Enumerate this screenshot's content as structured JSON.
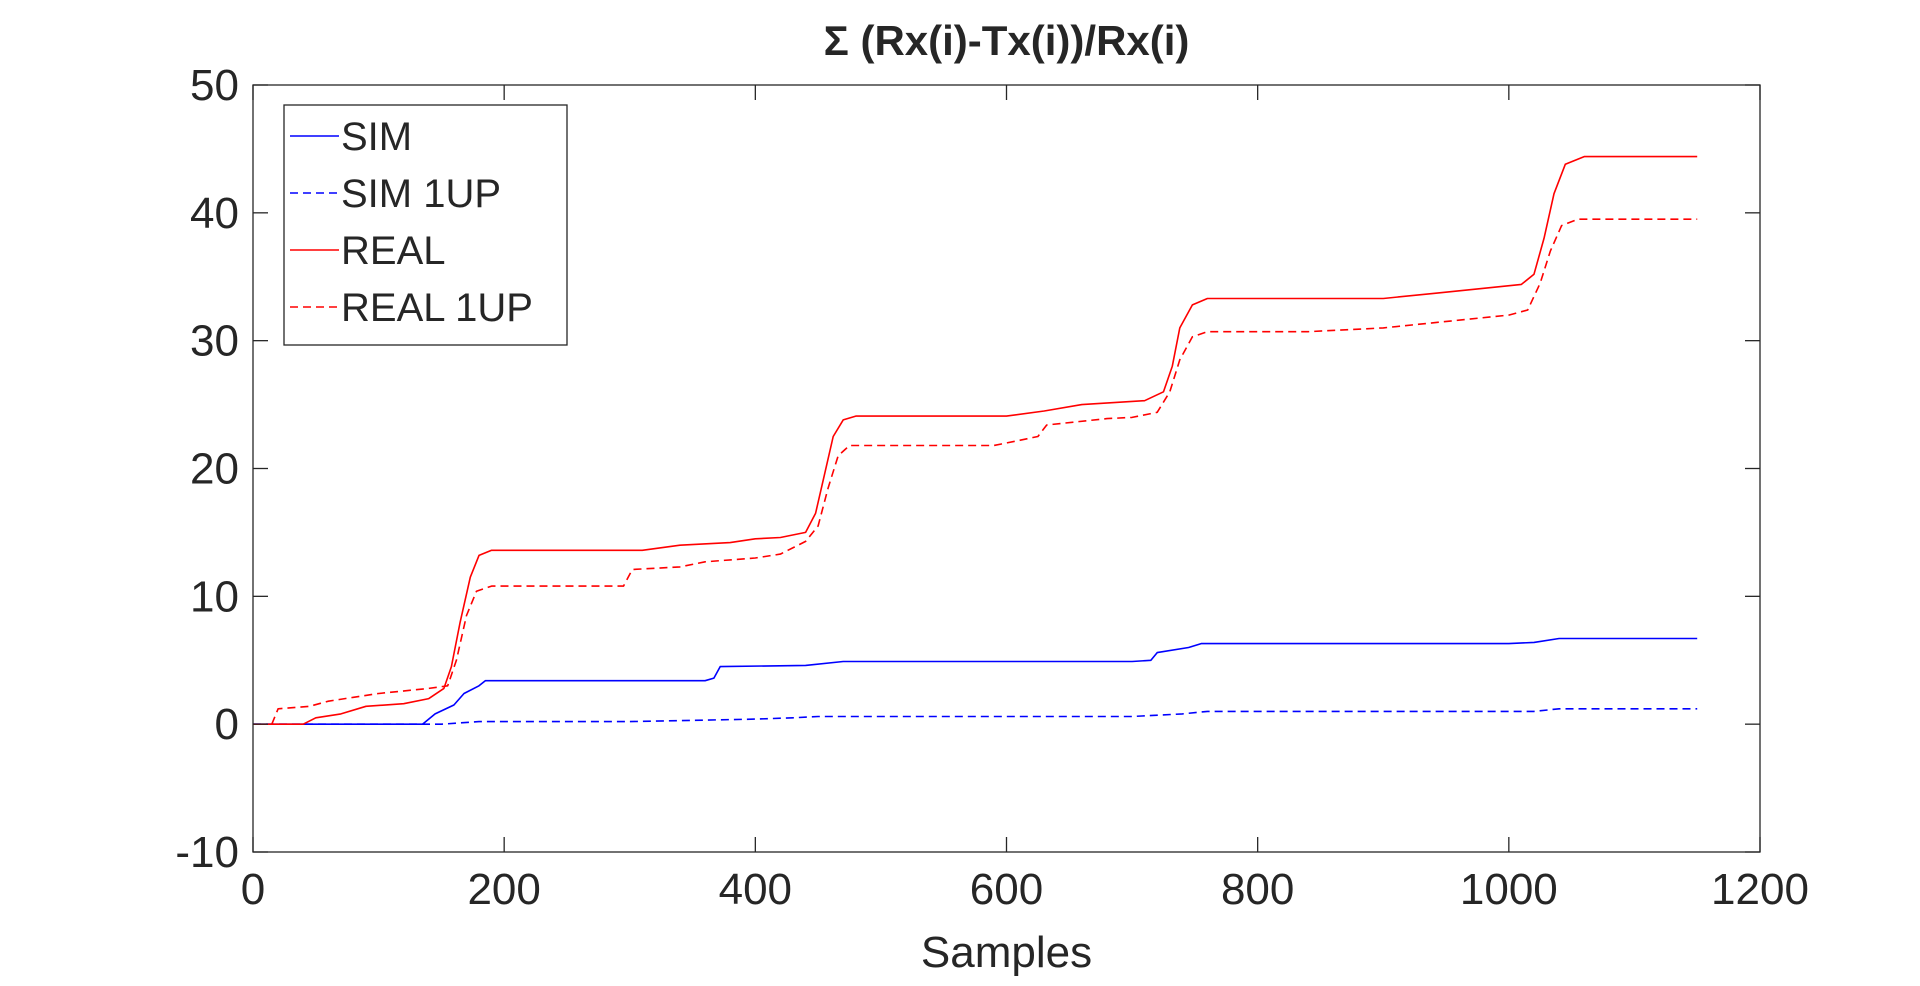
{
  "chart_data": {
    "type": "line",
    "title": "Σ (Rx(i)-Tx(i))/Rx(i)",
    "xlabel": "Samples",
    "ylabel": "",
    "xlim": [
      0,
      1200
    ],
    "ylim": [
      -10,
      50
    ],
    "xticks": [
      0,
      200,
      400,
      600,
      800,
      1000,
      1200
    ],
    "yticks": [
      -10,
      0,
      10,
      20,
      30,
      40,
      50
    ],
    "xtick_labels": [
      "0",
      "200",
      "400",
      "600",
      "800",
      "1000",
      "1200"
    ],
    "ytick_labels": [
      "-10",
      "0",
      "10",
      "20",
      "30",
      "40",
      "50"
    ],
    "grid": false,
    "legend_position": "top-left",
    "series": [
      {
        "name": "SIM",
        "color": "#0000ff",
        "style": "solid",
        "points": [
          [
            0,
            0
          ],
          [
            135,
            0
          ],
          [
            145,
            0.8
          ],
          [
            160,
            1.5
          ],
          [
            168,
            2.4
          ],
          [
            180,
            3.0
          ],
          [
            185,
            3.4
          ],
          [
            360,
            3.4
          ],
          [
            367,
            3.6
          ],
          [
            372,
            4.5
          ],
          [
            440,
            4.6
          ],
          [
            470,
            4.9
          ],
          [
            700,
            4.9
          ],
          [
            715,
            5.0
          ],
          [
            720,
            5.6
          ],
          [
            745,
            6.0
          ],
          [
            755,
            6.3
          ],
          [
            1000,
            6.3
          ],
          [
            1020,
            6.4
          ],
          [
            1040,
            6.7
          ],
          [
            1150,
            6.7
          ]
        ]
      },
      {
        "name": "SIM 1UP",
        "color": "#0000ff",
        "style": "dashed",
        "points": [
          [
            0,
            0
          ],
          [
            150,
            0
          ],
          [
            180,
            0.2
          ],
          [
            300,
            0.2
          ],
          [
            400,
            0.4
          ],
          [
            430,
            0.5
          ],
          [
            450,
            0.6
          ],
          [
            700,
            0.6
          ],
          [
            740,
            0.8
          ],
          [
            760,
            1.0
          ],
          [
            1020,
            1.0
          ],
          [
            1040,
            1.2
          ],
          [
            1150,
            1.2
          ]
        ]
      },
      {
        "name": "REAL",
        "color": "#ff0000",
        "style": "solid",
        "points": [
          [
            0,
            0
          ],
          [
            40,
            0
          ],
          [
            50,
            0.5
          ],
          [
            70,
            0.8
          ],
          [
            90,
            1.4
          ],
          [
            120,
            1.6
          ],
          [
            140,
            2.0
          ],
          [
            152,
            2.8
          ],
          [
            158,
            4.5
          ],
          [
            165,
            8.0
          ],
          [
            173,
            11.5
          ],
          [
            180,
            13.2
          ],
          [
            190,
            13.6
          ],
          [
            310,
            13.6
          ],
          [
            340,
            14.0
          ],
          [
            380,
            14.2
          ],
          [
            400,
            14.5
          ],
          [
            420,
            14.6
          ],
          [
            440,
            15.0
          ],
          [
            448,
            16.5
          ],
          [
            455,
            19.5
          ],
          [
            462,
            22.5
          ],
          [
            470,
            23.8
          ],
          [
            480,
            24.1
          ],
          [
            600,
            24.1
          ],
          [
            630,
            24.5
          ],
          [
            660,
            25.0
          ],
          [
            710,
            25.3
          ],
          [
            725,
            26.0
          ],
          [
            732,
            28.0
          ],
          [
            738,
            31.0
          ],
          [
            748,
            32.8
          ],
          [
            760,
            33.3
          ],
          [
            900,
            33.3
          ],
          [
            940,
            33.7
          ],
          [
            980,
            34.1
          ],
          [
            1010,
            34.4
          ],
          [
            1020,
            35.2
          ],
          [
            1028,
            38.0
          ],
          [
            1036,
            41.5
          ],
          [
            1045,
            43.8
          ],
          [
            1060,
            44.4
          ],
          [
            1150,
            44.4
          ]
        ]
      },
      {
        "name": "REAL 1UP",
        "color": "#ff0000",
        "style": "dashed",
        "points": [
          [
            15,
            0
          ],
          [
            20,
            1.2
          ],
          [
            45,
            1.4
          ],
          [
            60,
            1.8
          ],
          [
            80,
            2.1
          ],
          [
            100,
            2.4
          ],
          [
            140,
            2.8
          ],
          [
            155,
            3.0
          ],
          [
            162,
            5.0
          ],
          [
            170,
            8.5
          ],
          [
            178,
            10.4
          ],
          [
            190,
            10.8
          ],
          [
            295,
            10.8
          ],
          [
            302,
            12.1
          ],
          [
            340,
            12.3
          ],
          [
            360,
            12.7
          ],
          [
            400,
            13.0
          ],
          [
            420,
            13.3
          ],
          [
            440,
            14.3
          ],
          [
            450,
            15.5
          ],
          [
            458,
            18.5
          ],
          [
            466,
            21.0
          ],
          [
            475,
            21.8
          ],
          [
            590,
            21.8
          ],
          [
            610,
            22.2
          ],
          [
            625,
            22.5
          ],
          [
            632,
            23.4
          ],
          [
            680,
            23.9
          ],
          [
            700,
            24.0
          ],
          [
            720,
            24.4
          ],
          [
            730,
            26.0
          ],
          [
            738,
            28.5
          ],
          [
            748,
            30.3
          ],
          [
            760,
            30.7
          ],
          [
            840,
            30.7
          ],
          [
            900,
            31.0
          ],
          [
            960,
            31.6
          ],
          [
            1000,
            32.0
          ],
          [
            1015,
            32.4
          ],
          [
            1025,
            34.5
          ],
          [
            1033,
            37.0
          ],
          [
            1042,
            39.0
          ],
          [
            1055,
            39.5
          ],
          [
            1150,
            39.5
          ]
        ]
      }
    ]
  }
}
